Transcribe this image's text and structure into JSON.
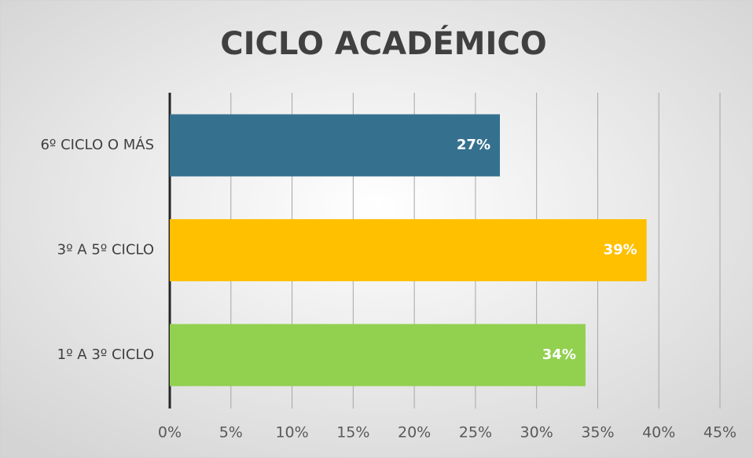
{
  "chart_data": {
    "type": "barh",
    "title": "CICLO ACADÉMICO",
    "categories": [
      "6º CICLO O MÁS",
      "3º A 5º CICLO",
      "1º A 3º CICLO"
    ],
    "values": [
      27,
      39,
      34
    ],
    "value_labels": [
      "27%",
      "39%",
      "34%"
    ],
    "colors": [
      "#35718f",
      "#ffc000",
      "#92d050"
    ],
    "xlim": [
      0,
      45
    ],
    "xticks": [
      {
        "value": 0,
        "label": "0%"
      },
      {
        "value": 5,
        "label": "5%"
      },
      {
        "value": 10,
        "label": "10%"
      },
      {
        "value": 15,
        "label": "15%"
      },
      {
        "value": 20,
        "label": "20%"
      },
      {
        "value": 25,
        "label": "25%"
      },
      {
        "value": 30,
        "label": "30%"
      },
      {
        "value": 35,
        "label": "35%"
      },
      {
        "value": 40,
        "label": "40%"
      },
      {
        "value": 45,
        "label": "45%"
      }
    ],
    "grid": true
  }
}
